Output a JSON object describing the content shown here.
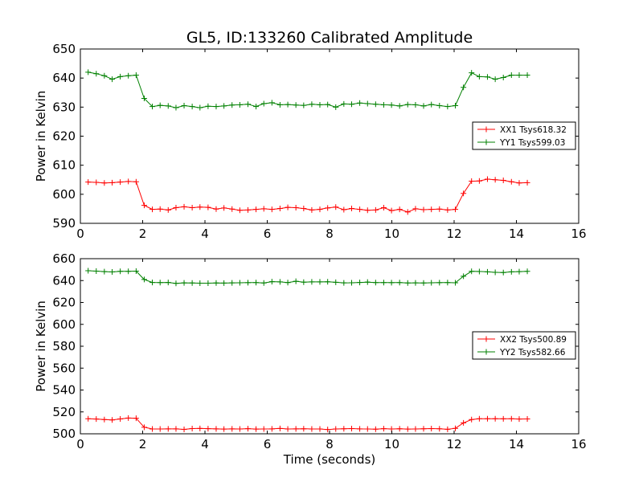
{
  "title": "GL5, ID:133260 Calibrated Amplitude",
  "chart_data": [
    {
      "type": "line",
      "xlabel": "",
      "ylabel": "Power in Kelvin",
      "xlim": [
        0,
        16
      ],
      "ylim": [
        590,
        650
      ],
      "xticks": [
        0,
        2,
        4,
        6,
        8,
        10,
        12,
        14,
        16
      ],
      "yticks": [
        590,
        600,
        610,
        620,
        630,
        640,
        650
      ],
      "legend_position": "right",
      "x": [
        0.25,
        0.51,
        0.77,
        1.02,
        1.28,
        1.54,
        1.79,
        2.05,
        2.31,
        2.56,
        2.82,
        3.07,
        3.33,
        3.59,
        3.84,
        4.1,
        4.36,
        4.61,
        4.87,
        5.12,
        5.38,
        5.64,
        5.89,
        6.15,
        6.41,
        6.66,
        6.92,
        7.17,
        7.43,
        7.69,
        7.94,
        8.2,
        8.46,
        8.71,
        8.97,
        9.22,
        9.48,
        9.74,
        9.99,
        10.25,
        10.51,
        10.76,
        11.02,
        11.27,
        11.53,
        11.79,
        12.04,
        12.3,
        12.56,
        12.81,
        13.07,
        13.32,
        13.58,
        13.84,
        14.09,
        14.35
      ],
      "series": [
        {
          "name": "XX1 Tsys618.32",
          "color": "#ff0000",
          "values": [
            604.2,
            604.1,
            603.9,
            604.0,
            604.2,
            604.4,
            604.3,
            596.2,
            594.8,
            594.9,
            594.6,
            595.4,
            595.7,
            595.4,
            595.6,
            595.5,
            594.9,
            595.3,
            594.9,
            594.5,
            594.6,
            594.8,
            595.0,
            594.8,
            595.1,
            595.5,
            595.4,
            595.1,
            594.6,
            594.8,
            595.3,
            595.6,
            594.7,
            595.1,
            594.8,
            594.5,
            594.6,
            595.4,
            594.4,
            594.8,
            593.9,
            595.0,
            594.7,
            594.8,
            594.9,
            594.6,
            594.8,
            600.3,
            604.5,
            604.6,
            605.2,
            605.0,
            604.8,
            604.3,
            603.9,
            604.0
          ]
        },
        {
          "name": "YY1 Tsys599.03",
          "color": "#008000",
          "values": [
            642.0,
            641.5,
            640.8,
            639.6,
            640.5,
            640.8,
            641.0,
            633.0,
            630.2,
            630.6,
            630.4,
            629.8,
            630.5,
            630.2,
            629.8,
            630.3,
            630.2,
            630.4,
            630.7,
            630.8,
            631.0,
            630.2,
            631.2,
            631.5,
            630.8,
            630.9,
            630.7,
            630.6,
            631.0,
            630.8,
            630.9,
            630.0,
            631.1,
            631.0,
            631.4,
            631.2,
            631.0,
            630.8,
            630.7,
            630.4,
            630.9,
            630.8,
            630.4,
            630.9,
            630.5,
            630.2,
            630.5,
            636.8,
            641.8,
            640.5,
            640.4,
            639.6,
            640.2,
            641.0,
            641.0,
            641.0
          ]
        }
      ]
    },
    {
      "type": "line",
      "xlabel": "Time (seconds)",
      "ylabel": "Power in Kelvin",
      "xlim": [
        0,
        16
      ],
      "ylim": [
        500,
        660
      ],
      "xticks": [
        0,
        2,
        4,
        6,
        8,
        10,
        12,
        14,
        16
      ],
      "yticks": [
        500,
        520,
        540,
        560,
        580,
        600,
        620,
        640,
        660
      ],
      "legend_position": "right",
      "x": [
        0.25,
        0.51,
        0.77,
        1.02,
        1.28,
        1.54,
        1.79,
        2.05,
        2.31,
        2.56,
        2.82,
        3.07,
        3.33,
        3.59,
        3.84,
        4.1,
        4.36,
        4.61,
        4.87,
        5.12,
        5.38,
        5.64,
        5.89,
        6.15,
        6.41,
        6.66,
        6.92,
        7.17,
        7.43,
        7.69,
        7.94,
        8.2,
        8.46,
        8.71,
        8.97,
        9.22,
        9.48,
        9.74,
        9.99,
        10.25,
        10.51,
        10.76,
        11.02,
        11.27,
        11.53,
        11.79,
        12.04,
        12.3,
        12.56,
        12.81,
        13.07,
        13.32,
        13.58,
        13.84,
        14.09,
        14.35
      ],
      "series": [
        {
          "name": "XX2 Tsys500.89",
          "color": "#ff0000",
          "values": [
            513.8,
            513.5,
            513.0,
            512.7,
            513.6,
            514.4,
            514.2,
            506.0,
            504.4,
            504.4,
            504.5,
            504.5,
            504.0,
            504.8,
            504.9,
            504.7,
            504.5,
            504.3,
            504.5,
            504.4,
            504.7,
            504.3,
            504.4,
            504.5,
            504.9,
            504.4,
            504.5,
            504.6,
            504.4,
            504.4,
            503.9,
            504.4,
            504.6,
            504.8,
            504.5,
            504.4,
            504.2,
            504.7,
            504.4,
            504.6,
            504.3,
            504.4,
            504.6,
            504.8,
            504.6,
            504.1,
            505.0,
            510.0,
            513.0,
            513.8,
            513.8,
            513.8,
            513.7,
            513.8,
            513.5,
            513.6
          ]
        },
        {
          "name": "YY2 Tsys582.66",
          "color": "#008000",
          "values": [
            649.0,
            648.6,
            648.2,
            647.9,
            648.4,
            648.4,
            648.6,
            641.0,
            638.3,
            638.2,
            638.3,
            637.4,
            637.9,
            637.8,
            637.6,
            637.6,
            637.8,
            637.7,
            637.9,
            638.0,
            638.1,
            638.2,
            637.8,
            639.0,
            638.8,
            638.2,
            639.4,
            638.5,
            638.8,
            638.8,
            638.9,
            638.4,
            637.9,
            638.0,
            638.3,
            638.6,
            638.2,
            638.2,
            638.1,
            638.2,
            637.8,
            637.9,
            637.8,
            638.0,
            638.1,
            638.2,
            638.0,
            643.9,
            648.4,
            648.3,
            648.0,
            647.5,
            647.3,
            648.0,
            648.2,
            648.4
          ]
        }
      ]
    }
  ]
}
